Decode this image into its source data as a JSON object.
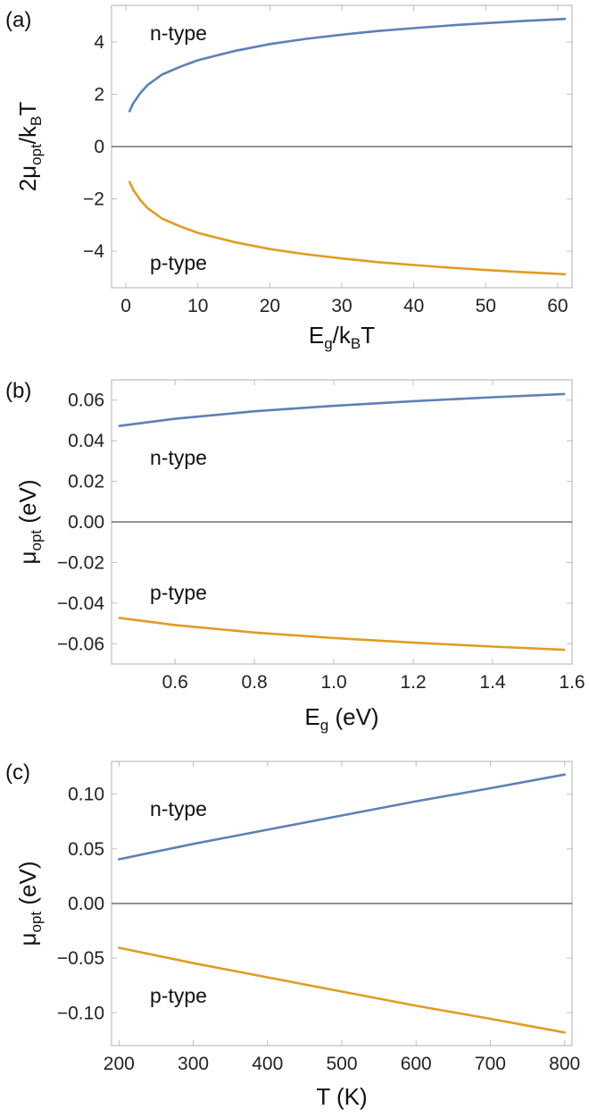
{
  "colors": {
    "n_type": "#5E81B5",
    "p_type": "#E19C24"
  },
  "chart_data": [
    {
      "type": "line",
      "panel_label": "(a)",
      "xlabel": "E_g/k_BT",
      "ylabel": "2μ_opt/k_BT",
      "xlim": [
        -2,
        62
      ],
      "ylim": [
        -5.4,
        5.4
      ],
      "xticks": [
        0,
        10,
        20,
        30,
        40,
        50,
        60
      ],
      "yticks": [
        -4,
        -2,
        0,
        2,
        4
      ],
      "ytick_labels": [
        "−4",
        "−2",
        "0",
        "2",
        "4"
      ],
      "zero_line": true,
      "annotations": [
        "n-type",
        "p-type"
      ],
      "series": [
        {
          "name": "n-type",
          "x": [
            0.5,
            1,
            2,
            3,
            5,
            7.5,
            10,
            15,
            20,
            25,
            30,
            35,
            40,
            45,
            50,
            55,
            61
          ],
          "y": [
            1.35,
            1.65,
            2.05,
            2.35,
            2.75,
            3.05,
            3.3,
            3.65,
            3.92,
            4.12,
            4.28,
            4.42,
            4.53,
            4.63,
            4.72,
            4.8,
            4.88
          ]
        },
        {
          "name": "p-type",
          "x": [
            0.5,
            1,
            2,
            3,
            5,
            7.5,
            10,
            15,
            20,
            25,
            30,
            35,
            40,
            45,
            50,
            55,
            61
          ],
          "y": [
            -1.35,
            -1.65,
            -2.05,
            -2.35,
            -2.75,
            -3.05,
            -3.3,
            -3.65,
            -3.92,
            -4.12,
            -4.28,
            -4.42,
            -4.53,
            -4.63,
            -4.72,
            -4.8,
            -4.88
          ]
        }
      ]
    },
    {
      "type": "line",
      "panel_label": "(b)",
      "xlabel": "E_g (eV)",
      "ylabel": "μ_opt (eV)",
      "xlim": [
        0.44,
        1.6
      ],
      "ylim": [
        -0.07,
        0.07
      ],
      "xticks": [
        0.6,
        0.8,
        1.0,
        1.2,
        1.4,
        1.6
      ],
      "xtick_labels": [
        "0.6",
        "0.8",
        "1.0",
        "1.2",
        "1.4",
        "1.6"
      ],
      "yticks": [
        -0.06,
        -0.04,
        -0.02,
        0.0,
        0.02,
        0.04,
        0.06
      ],
      "ytick_labels": [
        "−0.06",
        "−0.04",
        "−0.02",
        "0.00",
        "0.02",
        "0.04",
        "0.06"
      ],
      "zero_line": true,
      "annotations": [
        "n-type",
        "p-type"
      ],
      "series": [
        {
          "name": "n-type",
          "x": [
            0.46,
            0.6,
            0.8,
            1.0,
            1.2,
            1.4,
            1.58
          ],
          "y": [
            0.0473,
            0.0508,
            0.0545,
            0.0572,
            0.0595,
            0.0614,
            0.063
          ]
        },
        {
          "name": "p-type",
          "x": [
            0.46,
            0.6,
            0.8,
            1.0,
            1.2,
            1.4,
            1.58
          ],
          "y": [
            -0.0473,
            -0.0508,
            -0.0545,
            -0.0572,
            -0.0595,
            -0.0614,
            -0.063
          ]
        }
      ]
    },
    {
      "type": "line",
      "panel_label": "(c)",
      "xlabel": "T (K)",
      "ylabel": "μ_opt (eV)",
      "xlim": [
        190,
        810
      ],
      "ylim": [
        -0.13,
        0.13
      ],
      "xticks": [
        200,
        300,
        400,
        500,
        600,
        700,
        800
      ],
      "yticks": [
        -0.1,
        -0.05,
        0.0,
        0.05,
        0.1
      ],
      "ytick_labels": [
        "−0.10",
        "−0.05",
        "0.00",
        "0.05",
        "0.10"
      ],
      "zero_line": true,
      "annotations": [
        "n-type",
        "p-type"
      ],
      "series": [
        {
          "name": "n-type",
          "x": [
            200,
            300,
            400,
            500,
            600,
            700,
            800
          ],
          "y": [
            0.0405,
            0.0545,
            0.0675,
            0.0805,
            0.0935,
            0.1055,
            0.118
          ]
        },
        {
          "name": "p-type",
          "x": [
            200,
            300,
            400,
            500,
            600,
            700,
            800
          ],
          "y": [
            -0.0405,
            -0.0545,
            -0.0675,
            -0.0805,
            -0.0935,
            -0.1055,
            -0.118
          ]
        }
      ]
    }
  ]
}
